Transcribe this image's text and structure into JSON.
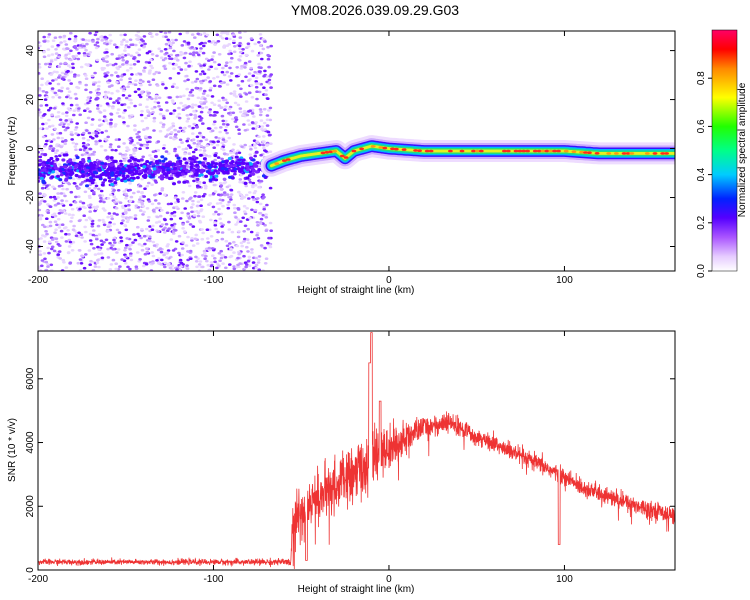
{
  "title": "YM08.2026.039.09.29.G03",
  "colors": {
    "snr_line": "#ee3333",
    "axis": "#000000"
  },
  "chart_data": [
    {
      "type": "heatmap",
      "name": "spectrogram",
      "xlabel": "Height of straight line (km)",
      "ylabel": "Frequency (Hz)",
      "xlim": [
        -200,
        163
      ],
      "ylim": [
        -50,
        48
      ],
      "x_ticks": [
        -200,
        -100,
        0,
        100
      ],
      "y_ticks": [
        -40,
        -20,
        0,
        20,
        40
      ],
      "noise_region_x": [
        -200,
        -67
      ],
      "ridge": {
        "x": [
          -200,
          -150,
          -100,
          -67,
          -60,
          -50,
          -40,
          -30,
          -25,
          -20,
          -10,
          0,
          20,
          40,
          60,
          80,
          100,
          120,
          140,
          163
        ],
        "freq": [
          -9,
          -9,
          -8,
          -7,
          -5,
          -3,
          -2,
          -1,
          -4,
          -1,
          1,
          0,
          -1,
          -1,
          -1,
          -1,
          -1,
          -2,
          -2,
          -2
        ]
      },
      "colorbar": {
        "label": "Normalized spectral amplitude",
        "range": [
          0,
          1
        ],
        "ticks": [
          0.0,
          0.2,
          0.4,
          0.6,
          0.8
        ],
        "tick_labels": [
          "0.0",
          "0.2",
          "0.4",
          "0.6",
          "0.8"
        ]
      }
    },
    {
      "type": "line",
      "name": "snr",
      "xlabel": "Height of straight line (km)",
      "ylabel": "SNR (10 * v/v)",
      "xlim": [
        -200,
        163
      ],
      "ylim": [
        0,
        7500
      ],
      "x_ticks": [
        -200,
        -100,
        0,
        100
      ],
      "y_ticks": [
        0,
        2000,
        4000,
        6000
      ],
      "envelope": {
        "x": [
          -200,
          -100,
          -56,
          -55,
          -40,
          -20,
          -10,
          0,
          20,
          35,
          50,
          70,
          90,
          110,
          130,
          150,
          163
        ],
        "mean": [
          250,
          250,
          250,
          1500,
          2300,
          3000,
          3400,
          3800,
          4500,
          4600,
          4200,
          3700,
          3200,
          2600,
          2200,
          1900,
          1700
        ],
        "spread": [
          80,
          80,
          100,
          700,
          700,
          800,
          900,
          600,
          300,
          300,
          250,
          250,
          250,
          250,
          250,
          250,
          250
        ]
      },
      "peaks": [
        {
          "x": -10,
          "y": 7450
        },
        {
          "x": -11,
          "y": 6500
        },
        {
          "x": -5,
          "y": 5300
        },
        {
          "x": 97,
          "y": 800
        },
        {
          "x": -47,
          "y": 300
        }
      ]
    }
  ]
}
